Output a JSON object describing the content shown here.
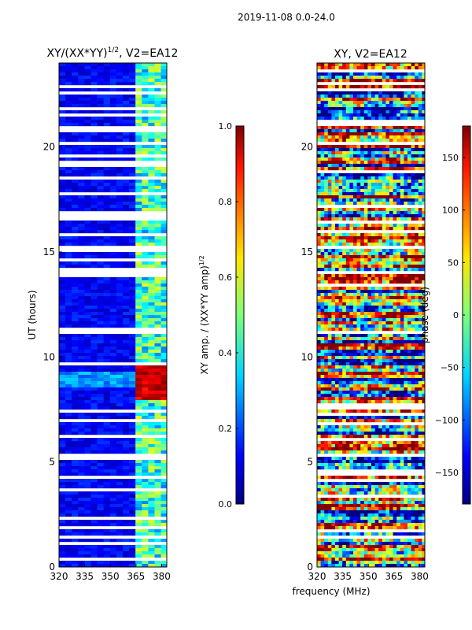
{
  "figure": {
    "suptitle": "2019-11-08 0.0-24.0"
  },
  "chart_data": [
    {
      "type": "heatmap",
      "title_main": "XY/(XX*YY)",
      "title_exp": "1/2",
      "title_suffix": ", V2=EA12",
      "xlabel": "",
      "ylabel": "UT (hours)",
      "xlim": [
        320,
        383
      ],
      "ylim": [
        0,
        24
      ],
      "xticks": [
        320,
        335,
        350,
        365,
        380
      ],
      "yticks": [
        0,
        5,
        10,
        15,
        20
      ],
      "colorbar": {
        "label_main": "XY amp. / (XX*YY amp)",
        "label_exp": "1/2",
        "min": 0.0,
        "max": 1.0,
        "ticks": [
          "0.0",
          "0.2",
          "0.4",
          "0.6",
          "0.8",
          "1.0"
        ],
        "tick_values": [
          0.0,
          0.2,
          0.4,
          0.6,
          0.8,
          1.0
        ],
        "colormap": "jet"
      },
      "high_amplitude_band": {
        "freq_range": [
          363,
          381
        ],
        "hours_range": [
          8.0,
          9.8
        ],
        "value": 0.95
      }
    },
    {
      "type": "heatmap",
      "title_main": "XY, V2=EA12",
      "xlabel": "frequency (MHz)",
      "ylabel": "",
      "xlim": [
        320,
        383
      ],
      "ylim": [
        0,
        24
      ],
      "xticks": [
        320,
        335,
        350,
        365,
        380
      ],
      "yticks": [
        0,
        5,
        10,
        15,
        20
      ],
      "colorbar": {
        "label_main": "phase (deg)",
        "min": -180,
        "max": 180,
        "ticks": [
          "−150",
          "−100",
          "−50",
          "0",
          "50",
          "100",
          "150"
        ],
        "tick_values": [
          -150,
          -100,
          -50,
          0,
          50,
          100,
          150
        ],
        "colormap": "jet"
      }
    }
  ]
}
